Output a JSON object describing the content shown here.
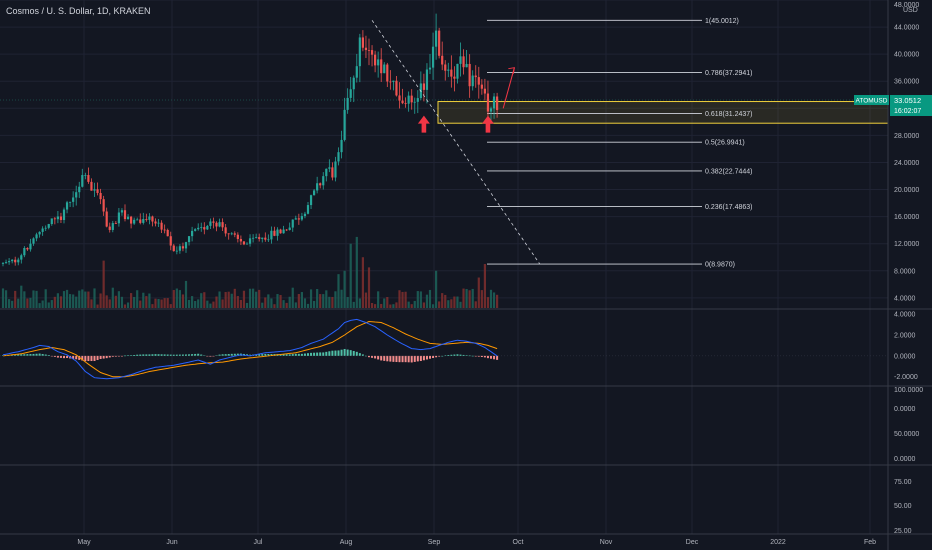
{
  "header": {
    "title": "Cosmos / U. S. Dollar, 1D, KRAKEN",
    "currency": "USD"
  },
  "colors": {
    "background": "#131722",
    "up": "#26a69a",
    "down": "#ef5350",
    "grid": "#1f2333",
    "axis_text": "#b2b5be",
    "macd_line": "#2962ff",
    "signal_line": "#ff9800",
    "fib_zone": "#f0d03c",
    "annotation_red": "#f23645",
    "price_badge": "#089981"
  },
  "chart_data": {
    "type": "candlestick",
    "symbol": "ATOMUSD",
    "x_labels": [
      "May",
      "Jun",
      "Jul",
      "Aug",
      "Sep",
      "Oct",
      "Nov",
      "Dec",
      "2022",
      "Feb"
    ],
    "price_axis": {
      "ticks": [
        "48.0000",
        "44.0000",
        "40.0000",
        "36.0000",
        "32.0000",
        "28.0000",
        "24.0000",
        "20.0000",
        "16.0000",
        "12.0000",
        "8.0000",
        "4.0000"
      ],
      "ylim": [
        2.5,
        48
      ]
    },
    "current_price": {
      "label": "ATOMUSD",
      "value": "33.0512",
      "countdown": "16:02:07"
    },
    "fibonacci": [
      {
        "level": "1",
        "price": "45.0012",
        "label": "1(45.0012)"
      },
      {
        "level": "0.786",
        "price": "37.2941",
        "label": "0.786(37.2941)"
      },
      {
        "level": "0.618",
        "price": "31.2437",
        "label": "0.618(31.2437)"
      },
      {
        "level": "0.5",
        "price": "26.9941",
        "label": "0.5(26.9941)"
      },
      {
        "level": "0.382",
        "price": "22.7444",
        "label": "0.382(22.7444)"
      },
      {
        "level": "0.236",
        "price": "17.4863",
        "label": "0.236(17.4863)"
      },
      {
        "level": "0",
        "price": "8.9870",
        "label": "0(8.9870)"
      }
    ],
    "macd_panel": {
      "ticks": [
        "4.0000",
        "2.0000",
        "0.0000",
        "-2.0000"
      ],
      "ylim": [
        -2.7,
        4.4
      ],
      "macd_keys": [
        [
          0,
          0.1
        ],
        [
          5,
          0.4
        ],
        [
          10,
          0.8
        ],
        [
          12,
          1.0
        ],
        [
          15,
          0.9
        ],
        [
          18,
          0.4
        ],
        [
          21,
          0.1
        ],
        [
          24,
          -0.5
        ],
        [
          27,
          -1.5
        ],
        [
          30,
          -2.1
        ],
        [
          34,
          -2.2
        ],
        [
          38,
          -2.1
        ],
        [
          42,
          -1.8
        ],
        [
          46,
          -1.4
        ],
        [
          50,
          -1.1
        ],
        [
          56,
          -0.9
        ],
        [
          61,
          -0.6
        ],
        [
          64,
          -0.4
        ],
        [
          68,
          -0.8
        ],
        [
          71,
          -0.4
        ],
        [
          75,
          -0.1
        ],
        [
          78,
          0.1
        ],
        [
          81,
          0.0
        ],
        [
          86,
          0.3
        ],
        [
          90,
          0.4
        ],
        [
          94,
          0.5
        ],
        [
          98,
          0.8
        ],
        [
          101,
          1.2
        ],
        [
          105,
          1.6
        ],
        [
          108,
          2.2
        ],
        [
          110,
          2.6
        ],
        [
          112,
          3.2
        ],
        [
          114,
          3.4
        ],
        [
          116,
          3.5
        ],
        [
          119,
          3.2
        ],
        [
          122,
          2.8
        ],
        [
          126,
          2.0
        ],
        [
          130,
          1.3
        ],
        [
          134,
          0.7
        ],
        [
          137,
          0.6
        ],
        [
          140,
          0.7
        ],
        [
          143,
          1.0
        ],
        [
          146,
          1.3
        ],
        [
          149,
          1.5
        ],
        [
          152,
          1.4
        ],
        [
          155,
          1.2
        ],
        [
          158,
          0.8
        ],
        [
          160,
          0.4
        ],
        [
          162,
          0.0
        ]
      ],
      "signal_keys": [
        [
          0,
          0.0
        ],
        [
          6,
          0.2
        ],
        [
          12,
          0.6
        ],
        [
          16,
          0.8
        ],
        [
          20,
          0.6
        ],
        [
          24,
          0.1
        ],
        [
          28,
          -0.8
        ],
        [
          32,
          -1.6
        ],
        [
          36,
          -2.0
        ],
        [
          40,
          -2.0
        ],
        [
          44,
          -1.8
        ],
        [
          48,
          -1.5
        ],
        [
          54,
          -1.2
        ],
        [
          60,
          -0.9
        ],
        [
          66,
          -0.7
        ],
        [
          72,
          -0.6
        ],
        [
          78,
          -0.3
        ],
        [
          84,
          -0.1
        ],
        [
          90,
          0.1
        ],
        [
          96,
          0.3
        ],
        [
          100,
          0.6
        ],
        [
          104,
          0.9
        ],
        [
          108,
          1.3
        ],
        [
          112,
          2.0
        ],
        [
          116,
          2.8
        ],
        [
          120,
          3.3
        ],
        [
          124,
          3.2
        ],
        [
          128,
          2.7
        ],
        [
          132,
          2.1
        ],
        [
          136,
          1.6
        ],
        [
          140,
          1.2
        ],
        [
          144,
          1.1
        ],
        [
          148,
          1.2
        ],
        [
          152,
          1.3
        ],
        [
          156,
          1.2
        ],
        [
          159,
          1.0
        ],
        [
          162,
          0.7
        ]
      ]
    },
    "panel3_ticks": [
      "100.0000",
      "0.0000",
      "50.0000",
      "0.0000"
    ],
    "panel4_ticks": [
      "75.00",
      "50.00",
      "25.00"
    ],
    "price_keys": [
      [
        0,
        9.0
      ],
      [
        4,
        9.5
      ],
      [
        8,
        11.5
      ],
      [
        12,
        13.5
      ],
      [
        16,
        15.5
      ],
      [
        19,
        16.2
      ],
      [
        22,
        18.0
      ],
      [
        25,
        21.0
      ],
      [
        27,
        23.0
      ],
      [
        29,
        20.0
      ],
      [
        32,
        19.0
      ],
      [
        34,
        14.0
      ],
      [
        36,
        14.8
      ],
      [
        39,
        16.5
      ],
      [
        42,
        15.5
      ],
      [
        44,
        15.0
      ],
      [
        47,
        15.8
      ],
      [
        50,
        15.5
      ],
      [
        53,
        13.5
      ],
      [
        56,
        11.0
      ],
      [
        59,
        11.5
      ],
      [
        62,
        13.5
      ],
      [
        65,
        14.0
      ],
      [
        68,
        15.5
      ],
      [
        71,
        15.0
      ],
      [
        74,
        13.5
      ],
      [
        77,
        12.5
      ],
      [
        80,
        12.0
      ],
      [
        83,
        12.8
      ],
      [
        86,
        13.0
      ],
      [
        89,
        13.5
      ],
      [
        92,
        14.0
      ],
      [
        95,
        15.0
      ],
      [
        98,
        16.5
      ],
      [
        101,
        18.5
      ],
      [
        104,
        21.0
      ],
      [
        106,
        23.0
      ],
      [
        108,
        22.5
      ],
      [
        110,
        24.5
      ],
      [
        112,
        30.5
      ],
      [
        114,
        36.0
      ],
      [
        116,
        40.0
      ],
      [
        118,
        42.0
      ],
      [
        120,
        40.0
      ],
      [
        122,
        38.0
      ],
      [
        125,
        37.0
      ],
      [
        128,
        35.0
      ],
      [
        131,
        33.0
      ],
      [
        134,
        32.5
      ],
      [
        136,
        34.5
      ],
      [
        138,
        36.0
      ],
      [
        140,
        39.0
      ],
      [
        142,
        42.0
      ],
      [
        144,
        39.0
      ],
      [
        147,
        37.5
      ],
      [
        150,
        38.0
      ],
      [
        153,
        36.5
      ],
      [
        156,
        36.0
      ],
      [
        158,
        33.0
      ],
      [
        160,
        32.0
      ],
      [
        162,
        33.05
      ]
    ],
    "volume_spikes": [
      [
        6,
        5.8
      ],
      [
        9,
        4.0
      ],
      [
        20,
        5.0
      ],
      [
        23,
        4.5
      ],
      [
        33,
        9.5
      ],
      [
        36,
        5.5
      ],
      [
        60,
        6.5
      ],
      [
        95,
        5.5
      ],
      [
        110,
        7.5
      ],
      [
        112,
        8.0
      ],
      [
        114,
        12.0
      ],
      [
        116,
        13.0
      ],
      [
        118,
        10.0
      ],
      [
        120,
        8.5
      ],
      [
        142,
        8.0
      ],
      [
        156,
        7.0
      ],
      [
        158,
        9.0
      ]
    ]
  },
  "annotations": {
    "up_arrows": [
      {
        "bar": 138,
        "price": 29.0
      },
      {
        "bar": 159,
        "price": 29.0
      }
    ],
    "projection": {
      "from_bar": 164,
      "from_price": 32.0,
      "to_bar": 167,
      "to_price": 38.0
    },
    "diagonal": {
      "from_bar": 121,
      "from_price": 45.0,
      "to_bar": 176,
      "to_price": 8.99
    }
  }
}
